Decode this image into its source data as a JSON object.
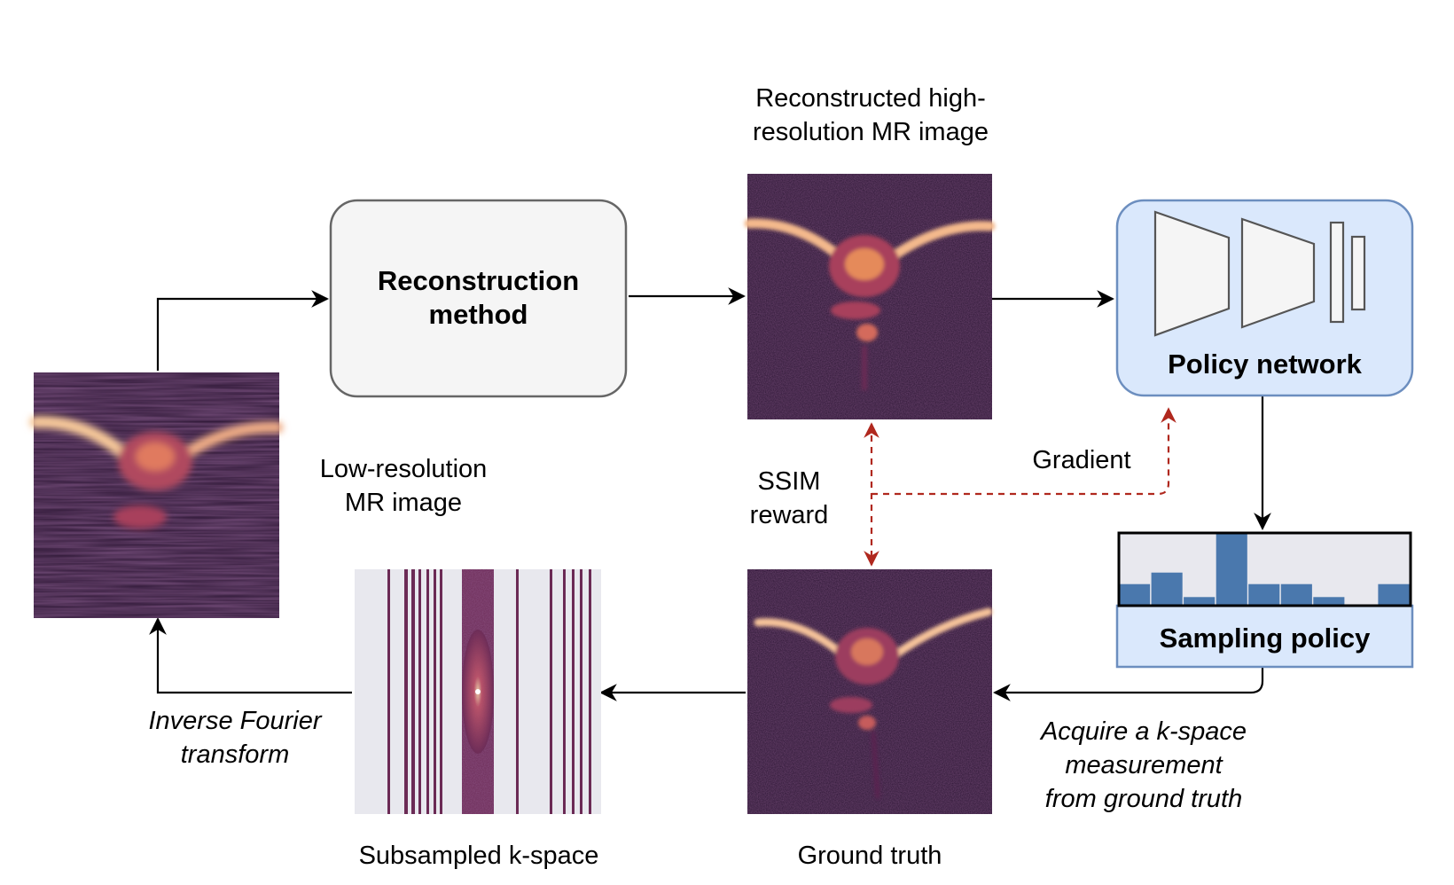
{
  "nodes": {
    "reconstruction_method": {
      "line1": "Reconstruction",
      "line2": "method"
    },
    "reconstructed_image": {
      "line1": "Reconstructed high-",
      "line2": "resolution MR image"
    },
    "policy_network": {
      "label": "Policy network"
    },
    "sampling_policy": {
      "label": "Sampling policy"
    },
    "low_res_image": {
      "line1": "Low-resolution",
      "line2": "MR image"
    },
    "subsampled_kspace": {
      "label": "Subsampled k-space"
    },
    "ground_truth": {
      "label": "Ground truth"
    }
  },
  "edges": {
    "ssim_reward": {
      "line1": "SSIM",
      "line2": "reward"
    },
    "gradient": {
      "label": "Gradient"
    },
    "acquire": {
      "line1": "Acquire a k-space",
      "line2": "measurement",
      "line3": "from ground truth"
    },
    "inverse_fourier": {
      "line1": "Inverse Fourier",
      "line2": "transform"
    }
  },
  "sampling_policy_bars": [
    0.3,
    0.46,
    0.12,
    1.0,
    0.3,
    0.3,
    0.12,
    0.0,
    0.3
  ],
  "colors": {
    "arrow": "#000000",
    "dashed_arrow": "#b0281e",
    "policy_fill": "#dae8fc",
    "policy_stroke": "#6c8ebf",
    "recon_fill": "#f5f5f5",
    "recon_stroke": "#666666",
    "bar": "#4a78ad",
    "bar_bg": "#e8e8ee",
    "mri_dark": "#2b1533",
    "mri_bright": "#fbe4b0"
  }
}
